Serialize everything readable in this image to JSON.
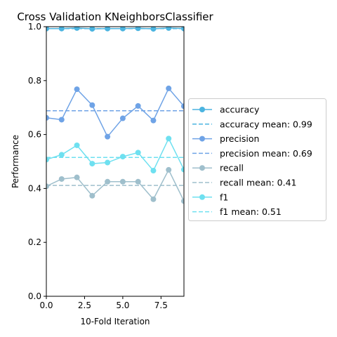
{
  "chart_data": {
    "type": "line",
    "title": "Cross Validation KNeighborsClassifier",
    "xlabel": "10-Fold Iteration",
    "ylabel": "Performance",
    "xlim": [
      0,
      9
    ],
    "ylim": [
      0,
      1
    ],
    "x_ticks": [
      "0.0",
      "2.5",
      "5.0",
      "7.5"
    ],
    "x_tick_values": [
      0,
      2.5,
      5,
      7.5
    ],
    "y_ticks": [
      "0.0",
      "0.2",
      "0.4",
      "0.6",
      "0.8",
      "1.0"
    ],
    "y_tick_values": [
      0,
      0.2,
      0.4,
      0.6,
      0.8,
      1.0
    ],
    "x": [
      0,
      1,
      2,
      3,
      4,
      5,
      6,
      7,
      8,
      9
    ],
    "legend_position": "right-outside",
    "series": [
      {
        "name": "accuracy",
        "color": "#4bb4e0",
        "values": [
          0.993,
          0.993,
          0.995,
          0.992,
          0.993,
          0.993,
          0.994,
          0.992,
          0.995,
          0.993
        ]
      },
      {
        "name": "precision",
        "color": "#6fa3e6",
        "values": [
          0.662,
          0.655,
          0.768,
          0.709,
          0.592,
          0.66,
          0.706,
          0.652,
          0.771,
          0.705
        ]
      },
      {
        "name": "recall",
        "color": "#9fbfcc",
        "values": [
          0.408,
          0.435,
          0.441,
          0.373,
          0.425,
          0.425,
          0.425,
          0.36,
          0.469,
          0.353
        ]
      },
      {
        "name": "f1",
        "color": "#6ee0f0",
        "values": [
          0.507,
          0.525,
          0.56,
          0.492,
          0.496,
          0.518,
          0.533,
          0.466,
          0.585,
          0.47
        ]
      }
    ],
    "means": [
      {
        "name": "accuracy mean: 0.99",
        "color": "#4bb4e0",
        "value": 0.993
      },
      {
        "name": "precision mean: 0.69",
        "color": "#6fa3e6",
        "value": 0.688
      },
      {
        "name": "recall mean: 0.41",
        "color": "#9fbfcc",
        "value": 0.411
      },
      {
        "name": "f1 mean: 0.51",
        "color": "#6ee0f0",
        "value": 0.515
      }
    ],
    "legend": [
      {
        "label": "accuracy",
        "color": "#4bb4e0",
        "kind": "line-marker"
      },
      {
        "label": "accuracy mean: 0.99",
        "color": "#4bb4e0",
        "kind": "dashed"
      },
      {
        "label": "precision",
        "color": "#6fa3e6",
        "kind": "line-marker"
      },
      {
        "label": "precision mean: 0.69",
        "color": "#6fa3e6",
        "kind": "dashed"
      },
      {
        "label": "recall",
        "color": "#9fbfcc",
        "kind": "line-marker"
      },
      {
        "label": "recall mean: 0.41",
        "color": "#9fbfcc",
        "kind": "dashed"
      },
      {
        "label": "f1",
        "color": "#6ee0f0",
        "kind": "line-marker"
      },
      {
        "label": "f1 mean: 0.51",
        "color": "#6ee0f0",
        "kind": "dashed"
      }
    ]
  }
}
